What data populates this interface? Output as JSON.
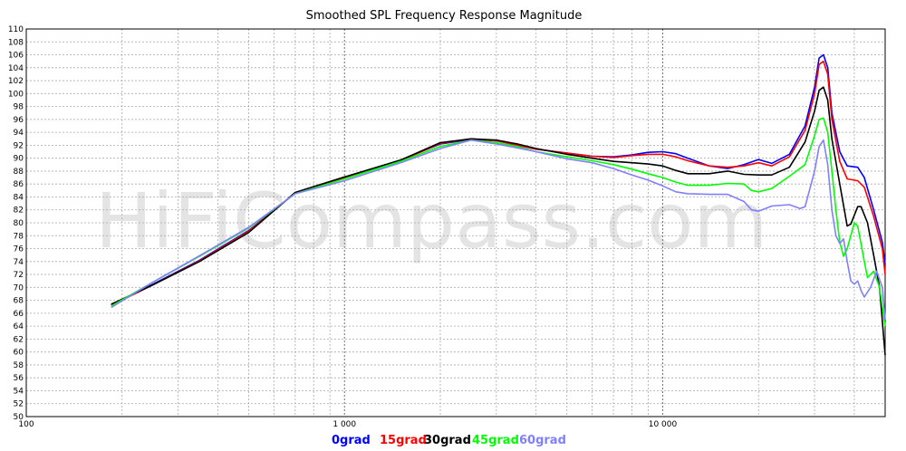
{
  "chart_data": {
    "type": "line",
    "title": "Smoothed SPL Frequency Response Magnitude",
    "watermark": "HiFiCompass.com",
    "x_scale": "log",
    "xlim": [
      100,
      50000
    ],
    "ylim": [
      50,
      110
    ],
    "x_tick_labels": [
      {
        "value": 100,
        "label": "100"
      },
      {
        "value": 1000,
        "label": "1 000"
      },
      {
        "value": 10000,
        "label": "10 000"
      }
    ],
    "y_ticks": [
      50,
      52,
      54,
      56,
      58,
      60,
      62,
      64,
      66,
      68,
      70,
      72,
      74,
      76,
      78,
      80,
      82,
      84,
      86,
      88,
      90,
      92,
      94,
      96,
      98,
      100,
      102,
      104,
      106,
      108,
      110
    ],
    "grid": true,
    "legend_position": "bottom",
    "series": [
      {
        "name": "0grad",
        "color": "#0000ff",
        "points": [
          [
            185,
            67.3
          ],
          [
            250,
            70.5
          ],
          [
            350,
            74.2
          ],
          [
            500,
            78.8
          ],
          [
            700,
            84.6
          ],
          [
            1000,
            87
          ],
          [
            1500,
            89.7
          ],
          [
            2000,
            92.2
          ],
          [
            2500,
            92.9
          ],
          [
            3000,
            92.7
          ],
          [
            3500,
            92
          ],
          [
            4000,
            91.4
          ],
          [
            5000,
            90.8
          ],
          [
            6000,
            90.3
          ],
          [
            7000,
            90.2
          ],
          [
            8000,
            90.5
          ],
          [
            9000,
            90.9
          ],
          [
            10000,
            91
          ],
          [
            11000,
            90.7
          ],
          [
            12000,
            90
          ],
          [
            14000,
            88.8
          ],
          [
            16000,
            88.4
          ],
          [
            18000,
            89
          ],
          [
            20000,
            89.8
          ],
          [
            22000,
            89.2
          ],
          [
            25000,
            90.6
          ],
          [
            28000,
            95
          ],
          [
            30000,
            101
          ],
          [
            31000,
            105.5
          ],
          [
            32000,
            106
          ],
          [
            33000,
            104
          ],
          [
            34000,
            97
          ],
          [
            36000,
            91
          ],
          [
            38000,
            88.8
          ],
          [
            41000,
            88.6
          ],
          [
            43000,
            87
          ],
          [
            46000,
            82
          ],
          [
            49000,
            77
          ],
          [
            50000,
            73.5
          ]
        ]
      },
      {
        "name": "15grad",
        "color": "#ff0000",
        "points": [
          [
            185,
            67.2
          ],
          [
            250,
            70.4
          ],
          [
            350,
            74.1
          ],
          [
            500,
            78.7
          ],
          [
            700,
            84.6
          ],
          [
            1000,
            87
          ],
          [
            1500,
            89.6
          ],
          [
            2000,
            92.3
          ],
          [
            2500,
            93
          ],
          [
            3000,
            92.7
          ],
          [
            3500,
            92
          ],
          [
            4000,
            91.4
          ],
          [
            5000,
            90.8
          ],
          [
            6000,
            90.3
          ],
          [
            7000,
            90.1
          ],
          [
            8000,
            90.4
          ],
          [
            9000,
            90.6
          ],
          [
            10000,
            90.6
          ],
          [
            11000,
            90.2
          ],
          [
            12000,
            89.6
          ],
          [
            14000,
            88.8
          ],
          [
            16000,
            88.6
          ],
          [
            18000,
            88.8
          ],
          [
            20000,
            89.3
          ],
          [
            22000,
            88.8
          ],
          [
            25000,
            90.2
          ],
          [
            28000,
            94.3
          ],
          [
            30000,
            100
          ],
          [
            31000,
            104.5
          ],
          [
            32000,
            105
          ],
          [
            33000,
            103
          ],
          [
            34000,
            96
          ],
          [
            36000,
            89.5
          ],
          [
            38000,
            86.8
          ],
          [
            41000,
            86.5
          ],
          [
            43000,
            85.5
          ],
          [
            46000,
            81
          ],
          [
            49000,
            76
          ],
          [
            50000,
            72
          ]
        ]
      },
      {
        "name": "30grad",
        "color": "#000000",
        "points": [
          [
            185,
            67.4
          ],
          [
            250,
            70.4
          ],
          [
            350,
            74
          ],
          [
            500,
            78.5
          ],
          [
            700,
            84.7
          ],
          [
            1000,
            87.1
          ],
          [
            1500,
            89.7
          ],
          [
            2000,
            92.4
          ],
          [
            2500,
            93
          ],
          [
            3000,
            92.8
          ],
          [
            3500,
            92.2
          ],
          [
            4000,
            91.5
          ],
          [
            5000,
            90.6
          ],
          [
            6000,
            90
          ],
          [
            7000,
            89.5
          ],
          [
            8000,
            89.3
          ],
          [
            9000,
            89.1
          ],
          [
            10000,
            88.8
          ],
          [
            11000,
            88.1
          ],
          [
            12000,
            87.6
          ],
          [
            14000,
            87.6
          ],
          [
            16000,
            88
          ],
          [
            18000,
            87.5
          ],
          [
            20000,
            87.4
          ],
          [
            22000,
            87.4
          ],
          [
            25000,
            88.6
          ],
          [
            28000,
            92.5
          ],
          [
            30000,
            97.3
          ],
          [
            31000,
            100.5
          ],
          [
            32000,
            101
          ],
          [
            33000,
            99
          ],
          [
            34000,
            93
          ],
          [
            36000,
            86
          ],
          [
            38000,
            79.5
          ],
          [
            39000,
            79.8
          ],
          [
            41000,
            82.5
          ],
          [
            42000,
            82.5
          ],
          [
            44000,
            80
          ],
          [
            46000,
            75
          ],
          [
            48000,
            70
          ],
          [
            50000,
            59.5
          ]
        ]
      },
      {
        "name": "45grad",
        "color": "#00ff00",
        "points": [
          [
            185,
            67.1
          ],
          [
            250,
            70.8
          ],
          [
            350,
            74.8
          ],
          [
            500,
            79.2
          ],
          [
            700,
            84.5
          ],
          [
            1000,
            86.8
          ],
          [
            1500,
            89.5
          ],
          [
            2000,
            91.8
          ],
          [
            2500,
            92.8
          ],
          [
            3000,
            92.4
          ],
          [
            3500,
            91.8
          ],
          [
            4000,
            91
          ],
          [
            5000,
            90.2
          ],
          [
            6000,
            89.6
          ],
          [
            7000,
            89
          ],
          [
            8000,
            88.3
          ],
          [
            9000,
            87.6
          ],
          [
            10000,
            87
          ],
          [
            11000,
            86.3
          ],
          [
            12000,
            85.8
          ],
          [
            14000,
            85.8
          ],
          [
            16000,
            86.1
          ],
          [
            18000,
            86
          ],
          [
            19000,
            85
          ],
          [
            20000,
            84.8
          ],
          [
            22000,
            85.3
          ],
          [
            25000,
            87.2
          ],
          [
            28000,
            89
          ],
          [
            30000,
            93.5
          ],
          [
            31000,
            96
          ],
          [
            32000,
            96.2
          ],
          [
            33000,
            94
          ],
          [
            34000,
            88
          ],
          [
            35000,
            82
          ],
          [
            36000,
            77
          ],
          [
            37000,
            74.8
          ],
          [
            38000,
            76
          ],
          [
            40000,
            80
          ],
          [
            41000,
            79.5
          ],
          [
            43000,
            74
          ],
          [
            44000,
            71.5
          ],
          [
            46000,
            72.5
          ],
          [
            48000,
            70
          ],
          [
            50000,
            64
          ]
        ]
      },
      {
        "name": "60grad",
        "color": "#8080ff",
        "points": [
          [
            185,
            66.9
          ],
          [
            250,
            70.8
          ],
          [
            350,
            74.9
          ],
          [
            500,
            79.3
          ],
          [
            700,
            84.5
          ],
          [
            1000,
            86.5
          ],
          [
            1500,
            89.3
          ],
          [
            2000,
            91.5
          ],
          [
            2500,
            92.8
          ],
          [
            3000,
            92.2
          ],
          [
            3500,
            91.6
          ],
          [
            4000,
            91
          ],
          [
            5000,
            89.9
          ],
          [
            6000,
            89.3
          ],
          [
            7000,
            88.4
          ],
          [
            8000,
            87.4
          ],
          [
            9000,
            86.6
          ],
          [
            10000,
            85.7
          ],
          [
            11000,
            84.8
          ],
          [
            12000,
            84.5
          ],
          [
            14000,
            84.4
          ],
          [
            16000,
            84.4
          ],
          [
            18000,
            83.3
          ],
          [
            19000,
            82
          ],
          [
            20000,
            81.8
          ],
          [
            22000,
            82.6
          ],
          [
            25000,
            82.8
          ],
          [
            27000,
            82.2
          ],
          [
            28000,
            82.5
          ],
          [
            30000,
            88
          ],
          [
            31000,
            91.8
          ],
          [
            32000,
            92.8
          ],
          [
            33000,
            89
          ],
          [
            34000,
            82
          ],
          [
            35000,
            78
          ],
          [
            36000,
            76.8
          ],
          [
            37000,
            77.5
          ],
          [
            38000,
            74
          ],
          [
            39000,
            71
          ],
          [
            40000,
            70.5
          ],
          [
            41000,
            71
          ],
          [
            42000,
            69.5
          ],
          [
            43000,
            68.5
          ],
          [
            45000,
            70
          ],
          [
            47000,
            72.5
          ],
          [
            49000,
            70
          ],
          [
            50000,
            65
          ]
        ]
      }
    ]
  }
}
